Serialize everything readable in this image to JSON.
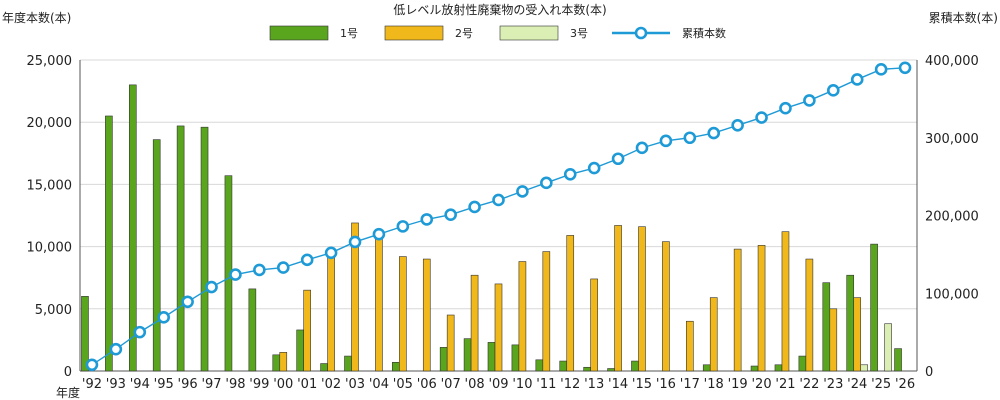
{
  "chart_data": {
    "type": "bar+line",
    "title": "低レベル放射性廃棄物の受入れ本数(本)",
    "ylabel_left": "年度本数(本)",
    "ylabel_right": "累積本数(本)",
    "xlabel": "年度",
    "ylim_left": [
      0,
      25000
    ],
    "ylim_right": [
      0,
      400000
    ],
    "yticks_left": [
      "0",
      "5,000",
      "10,000",
      "15,000",
      "20,000",
      "25,000"
    ],
    "yticks_right": [
      "0",
      "100,000",
      "200,000",
      "300,000",
      "400,000"
    ],
    "grid": true,
    "legend_position": "top-center",
    "categories": [
      "'92",
      "'93",
      "'94",
      "'95",
      "'96",
      "'97",
      "'98",
      "'99",
      "'00",
      "'01",
      "'02",
      "'03",
      "'04",
      "'05",
      "'06",
      "'07",
      "'08",
      "'09",
      "'10",
      "'11",
      "'12",
      "'13",
      "'14",
      "'15",
      "'16",
      "'17",
      "'18",
      "'19",
      "'20",
      "'21",
      "'22",
      "'23",
      "'24",
      "'25",
      "'26"
    ],
    "series": [
      {
        "name": "1号",
        "color": "#5aa51e",
        "values": [
          6000,
          20500,
          23000,
          18600,
          19700,
          19600,
          15700,
          6600,
          1300,
          3300,
          600,
          1200,
          0,
          700,
          0,
          1900,
          2600,
          2300,
          2100,
          900,
          800,
          300,
          200,
          800,
          0,
          0,
          500,
          0,
          400,
          500,
          1200,
          7100,
          7700,
          10200,
          1800
        ]
      },
      {
        "name": "2号",
        "color": "#f0b81a",
        "values": [
          0,
          0,
          0,
          0,
          0,
          0,
          0,
          0,
          1500,
          6500,
          9100,
          11900,
          10900,
          9200,
          9000,
          4500,
          7700,
          7000,
          8800,
          9600,
          10900,
          7400,
          11700,
          11600,
          10400,
          4000,
          5900,
          9800,
          10100,
          11200,
          9000,
          5000,
          5900,
          0,
          0
        ]
      },
      {
        "name": "3号",
        "color": "#dbefb5",
        "values": [
          0,
          0,
          0,
          0,
          0,
          0,
          0,
          0,
          0,
          0,
          0,
          0,
          0,
          0,
          0,
          0,
          0,
          0,
          0,
          0,
          0,
          0,
          0,
          0,
          0,
          0,
          0,
          0,
          0,
          0,
          0,
          0,
          500,
          3800,
          0
        ]
      },
      {
        "name": "累積本数",
        "color": "#1e9ad6",
        "axis": "right",
        "type": "line",
        "values": [
          8000,
          28000,
          50000,
          69000,
          89000,
          108000,
          124000,
          130000,
          133000,
          143000,
          152000,
          166000,
          176000,
          186000,
          195000,
          201000,
          211000,
          220000,
          231000,
          242000,
          253000,
          261000,
          273000,
          287000,
          296000,
          300000,
          306000,
          316000,
          326000,
          338000,
          348000,
          361000,
          375000,
          388000,
          390000
        ]
      }
    ]
  }
}
